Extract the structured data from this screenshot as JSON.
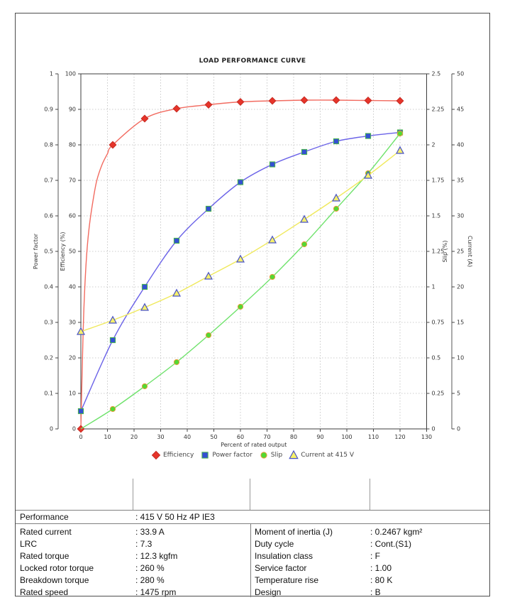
{
  "chart_data": {
    "type": "line",
    "title": "LOAD PERFORMANCE CURVE",
    "x_axis": {
      "label": "Percent of rated output",
      "min": 0,
      "max": 130,
      "ticks": [
        0,
        10,
        20,
        30,
        40,
        50,
        60,
        70,
        80,
        90,
        100,
        110,
        120,
        130
      ]
    },
    "left_axes": [
      {
        "id": "power_factor",
        "title": "Power factor",
        "min": 0,
        "max": 1,
        "ticks": [
          "0",
          "0.1",
          "0.2",
          "0.3",
          "0.4",
          "0.5",
          "0.6",
          "0.7",
          "0.8",
          "0.9",
          "1"
        ]
      },
      {
        "id": "efficiency",
        "title": "Efficiency (%)",
        "min": 0,
        "max": 100,
        "ticks": [
          "0",
          "10",
          "20",
          "30",
          "40",
          "50",
          "60",
          "70",
          "80",
          "90",
          "100"
        ]
      }
    ],
    "right_axes": [
      {
        "id": "slip",
        "title": "Slip (%)",
        "min": 0,
        "max": 2.5,
        "ticks": [
          "0",
          "0.25",
          "0.5",
          "0.75",
          "1",
          "1.25",
          "1.5",
          "1.75",
          "2",
          "2.25",
          "2.5"
        ]
      },
      {
        "id": "current",
        "title": "Current (A)",
        "min": 0,
        "max": 50,
        "ticks": [
          "0",
          "5",
          "10",
          "15",
          "20",
          "25",
          "30",
          "35",
          "40",
          "45",
          "50"
        ]
      }
    ],
    "grid": true,
    "legend_position": "bottom",
    "series": [
      {
        "name": "Efficiency",
        "axis": "efficiency",
        "marker": "diamond",
        "line_color": "#f26b60",
        "marker_fill": "#e6342a",
        "marker_stroke": "#c62a22",
        "x": [
          0,
          12,
          24,
          36,
          48,
          60,
          72,
          84,
          96,
          108,
          120
        ],
        "y": [
          0,
          80,
          87.4,
          90.2,
          91.3,
          92.1,
          92.4,
          92.6,
          92.6,
          92.5,
          92.4
        ],
        "curve_lead": [
          [
            0.6,
            20
          ],
          [
            1.2,
            35
          ],
          [
            2,
            47
          ],
          [
            3,
            56
          ],
          [
            4.5,
            64
          ],
          [
            6,
            70
          ],
          [
            8,
            74.5
          ],
          [
            10,
            77.5
          ]
        ]
      },
      {
        "name": "Power factor",
        "axis": "power_factor",
        "marker": "square",
        "line_color": "#6b63e8",
        "marker_fill": "#3450d2",
        "marker_stroke": "#49b648",
        "x": [
          0,
          12,
          24,
          36,
          48,
          60,
          72,
          84,
          96,
          108,
          120
        ],
        "y": [
          0.05,
          0.25,
          0.4,
          0.53,
          0.62,
          0.695,
          0.745,
          0.78,
          0.81,
          0.825,
          0.835
        ]
      },
      {
        "name": "Slip",
        "axis": "slip",
        "marker": "circle",
        "line_color": "#6ee26b",
        "marker_fill": "#52d933",
        "marker_stroke": "#e89b3c",
        "x": [
          12,
          24,
          36,
          48,
          60,
          72,
          84,
          96,
          108,
          120
        ],
        "y": [
          0.14,
          0.3,
          0.47,
          0.66,
          0.86,
          1.07,
          1.3,
          1.55,
          1.8,
          2.08
        ],
        "curve_lead": [
          [
            0,
            0
          ]
        ]
      },
      {
        "name": "Current at 415 V",
        "axis": "current",
        "marker": "triangle",
        "line_color": "#f0e95c",
        "marker_fill": "#f6f06a",
        "marker_stroke": "#4953c8",
        "x": [
          0,
          12,
          24,
          36,
          48,
          60,
          72,
          84,
          96,
          108,
          120
        ],
        "y": [
          13.7,
          15.3,
          17.1,
          19.1,
          21.5,
          23.9,
          26.6,
          29.5,
          32.5,
          35.7,
          39.2
        ]
      }
    ]
  },
  "table": {
    "performance_row": {
      "label": "Performance",
      "value": ": 415 V 50 Hz 4P IE3"
    },
    "specs_left": [
      {
        "label": "Rated current",
        "value": ": 33.9 A"
      },
      {
        "label": "LRC",
        "value": ": 7.3"
      },
      {
        "label": "Rated torque",
        "value": ": 12.3 kgfm"
      },
      {
        "label": "Locked rotor torque",
        "value": ": 260 %"
      },
      {
        "label": "Breakdown torque",
        "value": ": 280 %"
      },
      {
        "label": "Rated speed",
        "value": ": 1475 rpm"
      }
    ],
    "specs_right": [
      {
        "label": "Moment of inertia (J)",
        "value": ": 0.2467 kgm²"
      },
      {
        "label": "Duty cycle",
        "value": ": Cont.(S1)"
      },
      {
        "label": "Insulation class",
        "value": ": F"
      },
      {
        "label": "Service factor",
        "value": ": 1.00"
      },
      {
        "label": "Temperature rise",
        "value": ": 80 K"
      },
      {
        "label": "Design",
        "value": ": B"
      }
    ]
  }
}
